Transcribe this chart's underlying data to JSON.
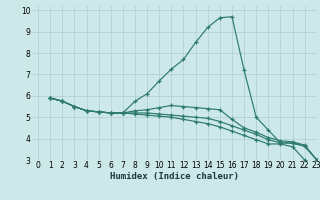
{
  "title": "",
  "xlabel": "Humidex (Indice chaleur)",
  "xlim": [
    -0.5,
    23
  ],
  "ylim": [
    3,
    10.2
  ],
  "yticks": [
    3,
    4,
    5,
    6,
    7,
    8,
    9,
    10
  ],
  "xticks": [
    0,
    1,
    2,
    3,
    4,
    5,
    6,
    7,
    8,
    9,
    10,
    11,
    12,
    13,
    14,
    15,
    16,
    17,
    18,
    19,
    20,
    21,
    22,
    23
  ],
  "bg_color": "#cce8e8",
  "grid_color": "#b0cdcd",
  "line_color": "#2d7a6e",
  "curves": [
    [
      5.9,
      5.75,
      5.5,
      5.3,
      5.25,
      5.2,
      5.2,
      5.75,
      6.1,
      6.7,
      7.25,
      7.7,
      8.5,
      9.2,
      9.65,
      9.7,
      7.2,
      5.0,
      4.4,
      3.8,
      3.8,
      3.65,
      3.0
    ],
    [
      5.9,
      5.75,
      5.5,
      5.3,
      5.25,
      5.2,
      5.2,
      5.3,
      5.35,
      5.45,
      5.55,
      5.5,
      5.45,
      5.4,
      5.35,
      4.9,
      4.5,
      4.3,
      4.05,
      3.9,
      3.85,
      3.7,
      3.0
    ],
    [
      5.9,
      5.75,
      5.5,
      5.3,
      5.25,
      5.2,
      5.2,
      5.2,
      5.2,
      5.15,
      5.1,
      5.05,
      5.0,
      4.95,
      4.8,
      4.6,
      4.4,
      4.2,
      3.95,
      3.8,
      3.78,
      3.65,
      3.0
    ],
    [
      5.9,
      5.75,
      5.5,
      5.3,
      5.25,
      5.2,
      5.2,
      5.15,
      5.1,
      5.05,
      5.0,
      4.9,
      4.8,
      4.7,
      4.55,
      4.35,
      4.15,
      3.95,
      3.75,
      3.75,
      3.62,
      3.0
    ]
  ],
  "tick_fontsize": 5.5,
  "xlabel_fontsize": 6.5
}
